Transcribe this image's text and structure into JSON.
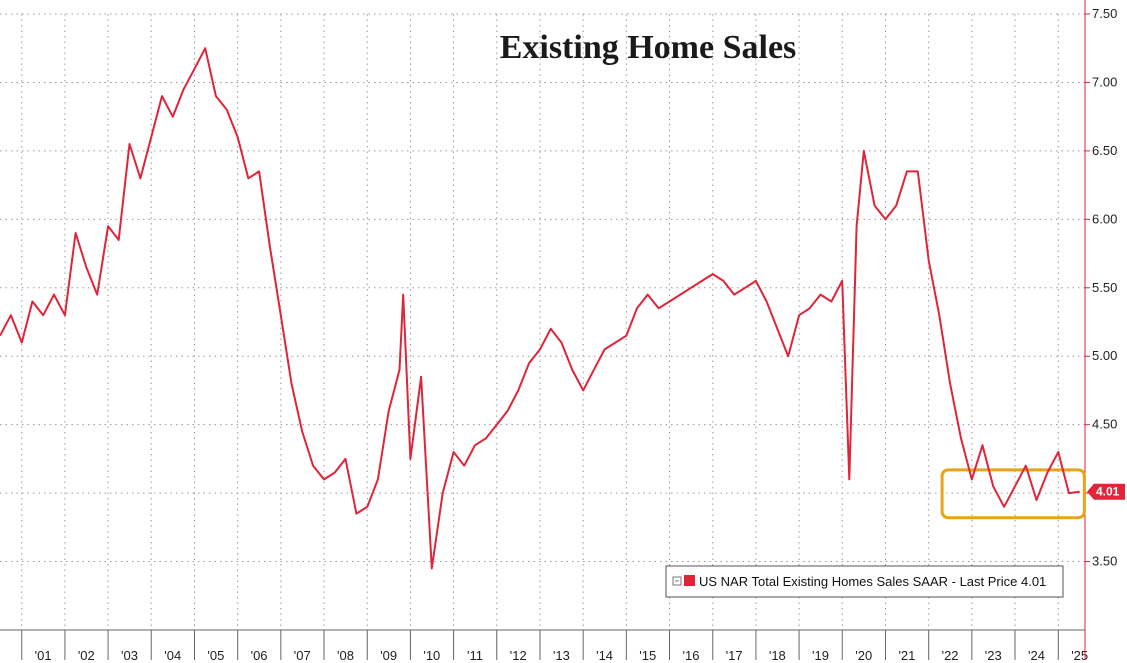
{
  "chart_data": {
    "type": "line",
    "title": "Existing Home Sales",
    "ylim": [
      3.0,
      7.5
    ],
    "yticks": [
      "3.50",
      "4.00",
      "4.50",
      "5.00",
      "5.50",
      "6.00",
      "6.50",
      "7.00",
      "7.50"
    ],
    "xticks": [
      "'01",
      "'02",
      "'03",
      "'04",
      "'05",
      "'06",
      "'07",
      "'08",
      "'09",
      "'10",
      "'11",
      "'12",
      "'13",
      "'14",
      "'15",
      "'16",
      "'17",
      "'18",
      "'19",
      "'20",
      "'21",
      "'22",
      "'23",
      "'24",
      "'25"
    ],
    "grid": true,
    "legend_position": "bottom-right",
    "series": [
      {
        "name": "US NAR Total Existing Homes Sales SAAR - Last Price 4.01",
        "color": "#e0243a",
        "x": [
          "2000-07-01",
          "2000-10-01",
          "2001-01-01",
          "2001-04-01",
          "2001-07-01",
          "2001-10-01",
          "2002-01-01",
          "2002-04-01",
          "2002-07-01",
          "2002-10-01",
          "2003-01-01",
          "2003-04-01",
          "2003-07-01",
          "2003-10-01",
          "2004-01-01",
          "2004-04-01",
          "2004-07-01",
          "2004-10-01",
          "2005-01-01",
          "2005-04-01",
          "2005-07-01",
          "2005-10-01",
          "2006-01-01",
          "2006-04-01",
          "2006-07-01",
          "2006-10-01",
          "2007-01-01",
          "2007-04-01",
          "2007-07-01",
          "2007-10-01",
          "2008-01-01",
          "2008-04-01",
          "2008-07-01",
          "2008-10-01",
          "2009-01-01",
          "2009-04-01",
          "2009-07-01",
          "2009-10-01",
          "2009-11-01",
          "2010-01-01",
          "2010-04-01",
          "2010-07-01",
          "2010-10-01",
          "2011-01-01",
          "2011-04-01",
          "2011-07-01",
          "2011-10-01",
          "2012-01-01",
          "2012-04-01",
          "2012-07-01",
          "2012-10-01",
          "2013-01-01",
          "2013-04-01",
          "2013-07-01",
          "2013-10-01",
          "2014-01-01",
          "2014-04-01",
          "2014-07-01",
          "2014-10-01",
          "2015-01-01",
          "2015-04-01",
          "2015-07-01",
          "2015-10-01",
          "2016-01-01",
          "2016-04-01",
          "2016-07-01",
          "2016-10-01",
          "2017-01-01",
          "2017-04-01",
          "2017-07-01",
          "2017-10-01",
          "2018-01-01",
          "2018-04-01",
          "2018-07-01",
          "2018-10-01",
          "2019-01-01",
          "2019-04-01",
          "2019-07-01",
          "2019-10-01",
          "2020-01-01",
          "2020-03-01",
          "2020-05-01",
          "2020-07-01",
          "2020-10-01",
          "2021-01-01",
          "2021-04-01",
          "2021-07-01",
          "2021-10-01",
          "2022-01-01",
          "2022-04-01",
          "2022-07-01",
          "2022-10-01",
          "2023-01-01",
          "2023-04-01",
          "2023-07-01",
          "2023-10-01",
          "2024-01-01",
          "2024-04-01",
          "2024-07-01",
          "2024-10-01",
          "2025-01-01",
          "2025-04-01",
          "2025-07-01"
        ],
        "values": [
          5.15,
          5.3,
          5.1,
          5.4,
          5.3,
          5.45,
          5.3,
          5.9,
          5.65,
          5.45,
          5.95,
          5.85,
          6.55,
          6.3,
          6.6,
          6.9,
          6.75,
          6.95,
          7.1,
          7.25,
          6.9,
          6.8,
          6.6,
          6.3,
          6.35,
          5.8,
          5.3,
          4.8,
          4.45,
          4.2,
          4.1,
          4.15,
          4.25,
          3.85,
          3.9,
          4.1,
          4.6,
          4.9,
          5.45,
          4.25,
          4.85,
          3.45,
          4.0,
          4.3,
          4.2,
          4.35,
          4.4,
          4.5,
          4.6,
          4.75,
          4.95,
          5.05,
          5.2,
          5.1,
          4.9,
          4.75,
          4.9,
          5.05,
          5.1,
          5.15,
          5.35,
          5.45,
          5.35,
          5.4,
          5.45,
          5.5,
          5.55,
          5.6,
          5.55,
          5.45,
          5.5,
          5.55,
          5.4,
          5.2,
          5.0,
          5.3,
          5.35,
          5.45,
          5.4,
          5.55,
          4.1,
          5.95,
          6.5,
          6.1,
          6.0,
          6.1,
          6.35,
          6.35,
          5.7,
          5.3,
          4.8,
          4.4,
          4.1,
          4.35,
          4.05,
          3.9,
          4.05,
          4.2,
          3.95,
          4.15,
          4.3,
          4.0,
          4.01
        ]
      }
    ],
    "last_value_label": "4.01",
    "legend_entry": "US NAR Total Existing Homes Sales SAAR - Last Price 4.01",
    "highlight_box": {
      "x_start": "2022-07-01",
      "x_end": "2025-08-01",
      "y_min": 3.82,
      "y_max": 4.17,
      "color": "#e8a317"
    }
  }
}
